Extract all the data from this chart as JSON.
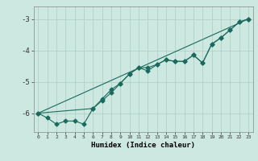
{
  "title": "",
  "xlabel": "Humidex (Indice chaleur)",
  "ylabel": "",
  "bg_color": "#cce8e0",
  "grid_color": "#aaccC4",
  "line_color": "#1a6b5e",
  "xlim": [
    -0.5,
    23.5
  ],
  "ylim": [
    -6.6,
    -2.6
  ],
  "yticks": [
    -6,
    -5,
    -4,
    -3
  ],
  "xticks": [
    0,
    1,
    2,
    3,
    4,
    5,
    6,
    7,
    8,
    9,
    10,
    11,
    12,
    13,
    14,
    15,
    16,
    17,
    18,
    19,
    20,
    21,
    22,
    23
  ],
  "series1_x": [
    0,
    1,
    2,
    3,
    4,
    5,
    6,
    7,
    8,
    9,
    10,
    11,
    12,
    13,
    14,
    15,
    16,
    17,
    18,
    19,
    20,
    21,
    22,
    23
  ],
  "series1_y": [
    -6.0,
    -6.15,
    -6.35,
    -6.25,
    -6.25,
    -6.35,
    -5.85,
    -5.6,
    -5.35,
    -5.05,
    -4.75,
    -4.55,
    -4.65,
    -4.45,
    -4.3,
    -4.35,
    -4.35,
    -4.15,
    -4.4,
    -3.8,
    -3.6,
    -3.35,
    -3.1,
    -3.0
  ],
  "series2_x": [
    0,
    6,
    7,
    8,
    9,
    10,
    11,
    12,
    13,
    14,
    15,
    16,
    17,
    18,
    19,
    20,
    21,
    22,
    23
  ],
  "series2_y": [
    -6.0,
    -5.85,
    -5.55,
    -5.25,
    -5.05,
    -4.75,
    -4.55,
    -4.55,
    -4.45,
    -4.3,
    -4.35,
    -4.35,
    -4.15,
    -4.4,
    -3.8,
    -3.6,
    -3.35,
    -3.1,
    -3.0
  ],
  "series3_x": [
    0,
    23
  ],
  "series3_y": [
    -6.0,
    -3.0
  ],
  "marker_size": 2.5,
  "linewidth": 0.8
}
